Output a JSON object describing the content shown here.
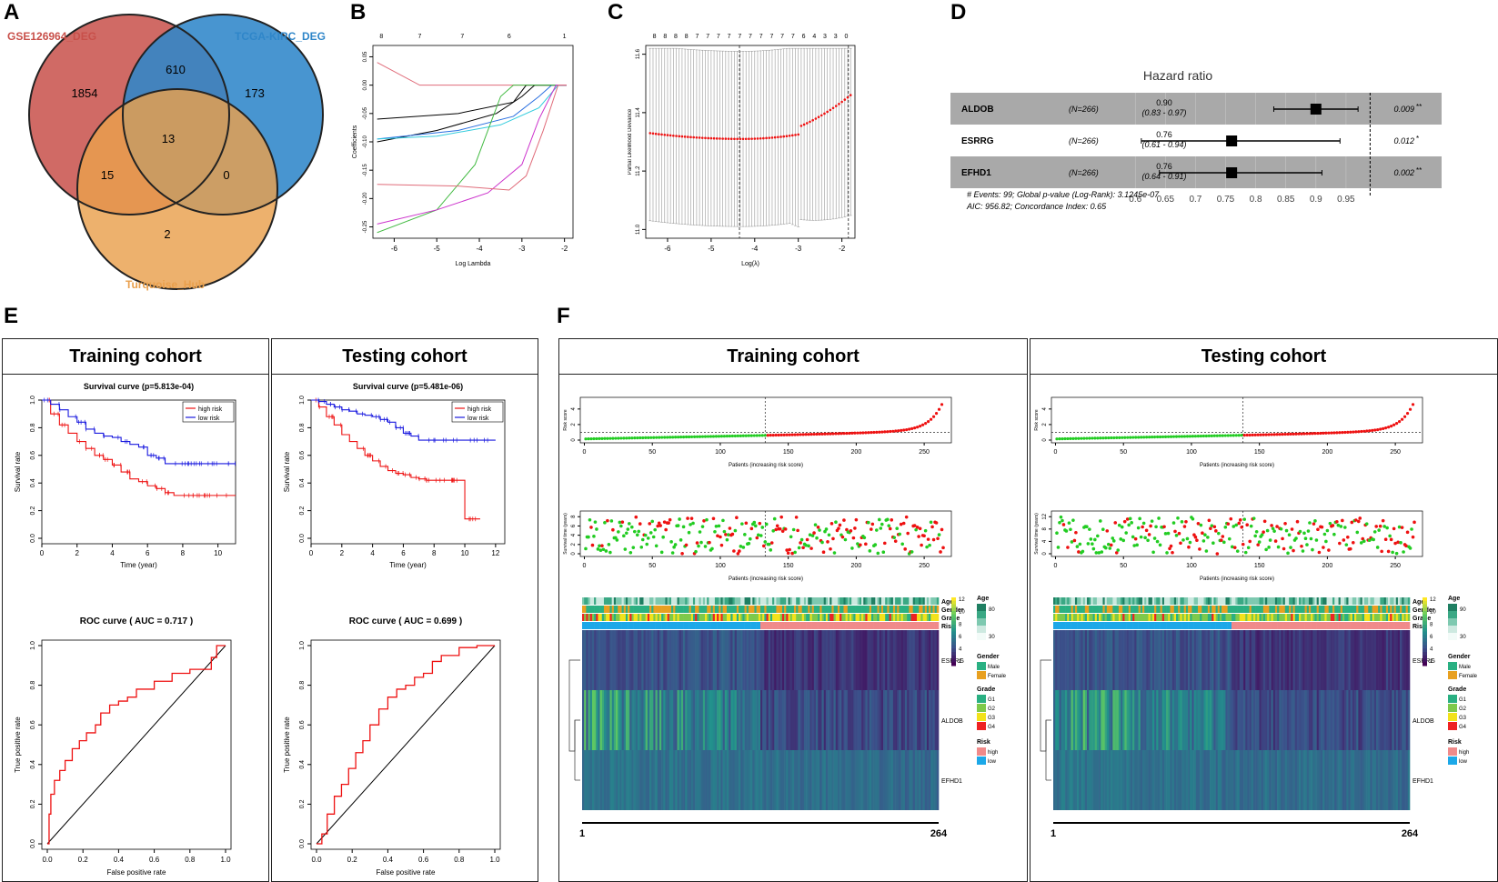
{
  "panel_labels": {
    "A": "A",
    "B": "B",
    "C": "C",
    "D": "D",
    "E": "E",
    "F": "F"
  },
  "colors": {
    "venn_a": "#c8504a",
    "venn_b": "#2f86c9",
    "venn_c": "#e9a04d",
    "red": "#ee1111",
    "blue": "#1a1adf",
    "green": "#22cc22",
    "navy": "#1d6aa5"
  },
  "chart_data": [
    {
      "id": "A",
      "type": "venn",
      "sets": [
        "GSE126964_DEG",
        "TCGA-KIRC_DEG",
        "Turquoise_Hub"
      ],
      "regions": {
        "a_only": "1854",
        "b_only": "173",
        "c_only": "2",
        "ab": "610",
        "ac": "15",
        "bc": "0",
        "abc": "13"
      }
    },
    {
      "id": "B",
      "type": "line",
      "title": "",
      "xlabel": "Log Lambda",
      "ylabel": "Coefficients",
      "xlim": [
        -6.5,
        -1.8
      ],
      "ylim": [
        -0.27,
        0.07
      ],
      "xticks": [
        "-6",
        "-5",
        "-4",
        "-3",
        "-2"
      ],
      "yticks": [
        "0.05",
        "0.00",
        "-0.05",
        "-0.10",
        "-0.15",
        "-0.20",
        "-0.25"
      ],
      "top_ticks": [
        "8",
        "7",
        "7",
        "6",
        "1"
      ]
    },
    {
      "id": "C",
      "type": "scatter",
      "xlabel": "Log(λ)",
      "ylabel": "Partial Likelihood Deviance",
      "xlim": [
        -6.5,
        -1.7
      ],
      "ylim": [
        10.97,
        11.63
      ],
      "xticks": [
        "-6",
        "-5",
        "-4",
        "-3",
        "-2"
      ],
      "yticks": [
        "11.0",
        "11.2",
        "11.4",
        "11.6"
      ],
      "top_ticks": [
        "8",
        "8",
        "8",
        "8",
        "7",
        "7",
        "7",
        "7",
        "7",
        "7",
        "7",
        "7",
        "7",
        "7",
        "6",
        "4",
        "3",
        "3",
        "0"
      ],
      "vlines": [
        -4.35,
        -1.85
      ]
    },
    {
      "id": "D",
      "type": "forest",
      "title": "Hazard ratio",
      "rows": [
        {
          "gene": "ALDOB",
          "n": "(N=266)",
          "hr": "0.90",
          "ci": "(0.83 - 0.97)",
          "p": "0.009",
          "sig": "**",
          "est": 0.9,
          "lo": 0.83,
          "hi": 0.97
        },
        {
          "gene": "ESRRG",
          "n": "(N=266)",
          "hr": "0.76",
          "ci": "(0.61 - 0.94)",
          "p": "0.012",
          "sig": "*",
          "est": 0.76,
          "lo": 0.61,
          "hi": 0.94
        },
        {
          "gene": "EFHD1",
          "n": "(N=266)",
          "hr": "0.76",
          "ci": "(0.64 - 0.91)",
          "p": "0.002",
          "sig": "**",
          "est": 0.76,
          "lo": 0.64,
          "hi": 0.91
        }
      ],
      "xticks": [
        "0.6",
        "0.65",
        "0.7",
        "0.75",
        "0.8",
        "0.85",
        "0.9",
        "0.95"
      ],
      "footer1": "# Events: 99; Global p-value (Log-Rank): 3.1245e-07",
      "footer2": "AIC: 956.82; Concordance Index: 0.65"
    },
    {
      "id": "E-train-km",
      "type": "line",
      "title": "Survival curve (p=5.813e-04)",
      "xlabel": "Time (year)",
      "ylabel": "Survival rate",
      "xticks": [
        "0",
        "2",
        "4",
        "6",
        "8",
        "10"
      ],
      "yticks": [
        "0.0",
        "0.2",
        "0.4",
        "0.6",
        "0.8",
        "1.0"
      ],
      "legend": [
        "high risk",
        "low risk"
      ],
      "xlim": [
        0,
        11
      ],
      "series": [
        {
          "name": "high risk",
          "x": [
            0,
            0.5,
            1,
            1.5,
            2,
            2.5,
            3,
            3.5,
            4,
            4.5,
            5,
            5.5,
            6,
            6.5,
            7,
            7.5,
            8,
            9,
            10,
            11
          ],
          "y": [
            1,
            0.9,
            0.82,
            0.76,
            0.7,
            0.65,
            0.6,
            0.57,
            0.53,
            0.48,
            0.43,
            0.41,
            0.38,
            0.36,
            0.33,
            0.31,
            0.31,
            0.31,
            0.31,
            0.31
          ]
        },
        {
          "name": "low risk",
          "x": [
            0,
            0.5,
            1,
            1.5,
            2,
            2.5,
            3,
            3.5,
            4,
            4.5,
            5,
            5.5,
            6,
            6.5,
            7,
            7.5,
            8,
            9,
            10,
            11
          ],
          "y": [
            1,
            0.97,
            0.93,
            0.88,
            0.84,
            0.79,
            0.76,
            0.74,
            0.73,
            0.7,
            0.68,
            0.66,
            0.6,
            0.58,
            0.54,
            0.54,
            0.54,
            0.54,
            0.54,
            0.54
          ]
        }
      ]
    },
    {
      "id": "E-test-km",
      "type": "line",
      "title": "Survival curve (p=5.481e-06)",
      "xlabel": "Time (year)",
      "ylabel": "Survival rate",
      "xticks": [
        "0",
        "2",
        "4",
        "6",
        "8",
        "10",
        "12"
      ],
      "yticks": [
        "0.0",
        "0.2",
        "0.4",
        "0.6",
        "0.8",
        "1.0"
      ],
      "legend": [
        "high risk",
        "low risk"
      ],
      "xlim": [
        0,
        12.6
      ],
      "series": [
        {
          "name": "high risk",
          "x": [
            0,
            0.5,
            1,
            1.5,
            2,
            2.5,
            3,
            3.5,
            4,
            4.5,
            5,
            5.5,
            6,
            6.5,
            7,
            7.5,
            8,
            9,
            9.5,
            9.9,
            10,
            11
          ],
          "y": [
            1,
            0.95,
            0.88,
            0.82,
            0.75,
            0.7,
            0.65,
            0.6,
            0.56,
            0.52,
            0.49,
            0.47,
            0.46,
            0.44,
            0.43,
            0.42,
            0.42,
            0.42,
            0.42,
            0.42,
            0.14,
            0.14
          ]
        },
        {
          "name": "low risk",
          "x": [
            0,
            0.5,
            1,
            1.5,
            2,
            2.5,
            3,
            3.5,
            4,
            4.5,
            5,
            5.5,
            6,
            6.5,
            7,
            8,
            9,
            10,
            11,
            12
          ],
          "y": [
            1,
            0.99,
            0.97,
            0.95,
            0.93,
            0.92,
            0.9,
            0.89,
            0.88,
            0.86,
            0.84,
            0.8,
            0.76,
            0.74,
            0.71,
            0.71,
            0.71,
            0.71,
            0.71,
            0.71
          ]
        }
      ]
    },
    {
      "id": "E-train-roc",
      "type": "line",
      "title": "ROC curve ( AUC =  0.717 )",
      "xlabel": "False positive rate",
      "ylabel": "True positive rate",
      "xticks": [
        "0.0",
        "0.2",
        "0.4",
        "0.6",
        "0.8",
        "1.0"
      ],
      "yticks": [
        "0.0",
        "0.2",
        "0.4",
        "0.6",
        "0.8",
        "1.0"
      ],
      "series": [
        {
          "name": "roc",
          "x": [
            0,
            0.01,
            0.02,
            0.04,
            0.07,
            0.1,
            0.14,
            0.18,
            0.22,
            0.27,
            0.3,
            0.35,
            0.4,
            0.45,
            0.5,
            0.6,
            0.7,
            0.8,
            0.88,
            0.92,
            0.95,
            1
          ],
          "y": [
            0,
            0.15,
            0.25,
            0.32,
            0.37,
            0.42,
            0.48,
            0.52,
            0.56,
            0.6,
            0.66,
            0.7,
            0.72,
            0.74,
            0.78,
            0.82,
            0.86,
            0.88,
            0.88,
            0.94,
            1,
            1
          ]
        }
      ]
    },
    {
      "id": "E-test-roc",
      "type": "line",
      "title": "ROC curve ( AUC =  0.699 )",
      "xlabel": "False positive rate",
      "ylabel": "True positive rate",
      "xticks": [
        "0.0",
        "0.2",
        "0.4",
        "0.6",
        "0.8",
        "1.0"
      ],
      "yticks": [
        "0.0",
        "0.2",
        "0.4",
        "0.6",
        "0.8",
        "1.0"
      ],
      "series": [
        {
          "name": "roc",
          "x": [
            0,
            0.03,
            0.06,
            0.1,
            0.14,
            0.18,
            0.22,
            0.26,
            0.3,
            0.35,
            0.4,
            0.45,
            0.5,
            0.55,
            0.6,
            0.65,
            0.7,
            0.8,
            0.9,
            1
          ],
          "y": [
            0,
            0.05,
            0.15,
            0.24,
            0.3,
            0.38,
            0.46,
            0.52,
            0.6,
            0.68,
            0.74,
            0.78,
            0.8,
            0.84,
            0.86,
            0.92,
            0.95,
            0.99,
            1,
            1
          ]
        }
      ]
    },
    {
      "id": "F-train",
      "type": "scatter",
      "risk_xlabel": "Patients (increasing risk score)",
      "risk_ylabel": "Risk score",
      "risk_xticks": [
        "0",
        "50",
        "100",
        "150",
        "200",
        "250"
      ],
      "risk_yticks": [
        "0",
        "2",
        "4"
      ],
      "surv_xlabel": "Patients (increasing risk score)",
      "surv_ylabel": "Survival time (years)",
      "surv_xticks": [
        "0",
        "50",
        "100",
        "150",
        "200",
        "250"
      ],
      "surv_yticks": [
        "0",
        "2",
        "4",
        "6",
        "8"
      ],
      "n": 264,
      "cut": 133
    },
    {
      "id": "F-test",
      "type": "scatter",
      "risk_xlabel": "Patients (increasing risk score)",
      "risk_ylabel": "Risk score",
      "risk_xticks": [
        "0",
        "50",
        "100",
        "150",
        "200",
        "250"
      ],
      "risk_yticks": [
        "0",
        "2",
        "4"
      ],
      "surv_xlabel": "Patients (increasing risk score)",
      "surv_ylabel": "Survival time (years)",
      "surv_xticks": [
        "0",
        "50",
        "100",
        "150",
        "200",
        "250"
      ],
      "surv_yticks": [
        "0",
        "4",
        "8",
        "12"
      ],
      "n": 264,
      "cut": 138
    },
    {
      "id": "F-heatmap",
      "type": "heatmap",
      "genes": [
        "ESRRG",
        "ALDOB",
        "EFHD1"
      ],
      "annotation_rows": [
        "Age",
        "Gender",
        "Grade",
        "Risk"
      ],
      "colorbar_ticks": [
        "12",
        "10",
        "8",
        "6",
        "4",
        "2"
      ],
      "range_start": "1",
      "range_end": "264"
    }
  ],
  "cohorts": {
    "training": "Training cohort",
    "testing": "Testing cohort"
  },
  "legend_F_train": {
    "age_title": "Age",
    "age_ticks": [
      "80",
      "30"
    ],
    "gender_title": "Gender",
    "gender_items": [
      "Male",
      "Female"
    ],
    "grade_title": "Grade",
    "grade_items": [
      "G1",
      "G2",
      "G3",
      "G4"
    ],
    "risk_title": "Risk",
    "risk_items": [
      "high",
      "low"
    ]
  },
  "legend_F_test": {
    "age_title": "Age",
    "age_ticks": [
      "90",
      "30"
    ],
    "gender_title": "Gender",
    "gender_items": [
      "Male",
      "Female"
    ],
    "grade_title": "Grade",
    "grade_items": [
      "G1",
      "G2",
      "G3",
      "G4"
    ],
    "risk_title": "Risk",
    "risk_items": [
      "high",
      "low"
    ]
  }
}
